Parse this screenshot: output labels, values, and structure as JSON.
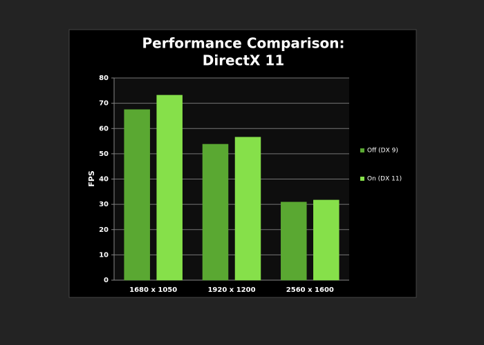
{
  "chart_data": {
    "type": "bar",
    "title": [
      "Performance Comparison:",
      "DirectX 11"
    ],
    "y_label": "FPS",
    "categories": [
      "1680 x 1050",
      "1920 x 1200",
      "2560 x 1600"
    ],
    "series": [
      {
        "name": "Off (DX 9)",
        "color": "#5aa832",
        "values": [
          67.5,
          53.8,
          30.9
        ]
      },
      {
        "name": "On (DX 11)",
        "color": "#86e04a",
        "values": [
          73.2,
          56.6,
          31.7
        ]
      }
    ],
    "ylim": [
      0,
      80
    ],
    "yticks": [
      0,
      10,
      20,
      30,
      40,
      50,
      60,
      70,
      80
    ],
    "grid": true,
    "legend": "right"
  }
}
